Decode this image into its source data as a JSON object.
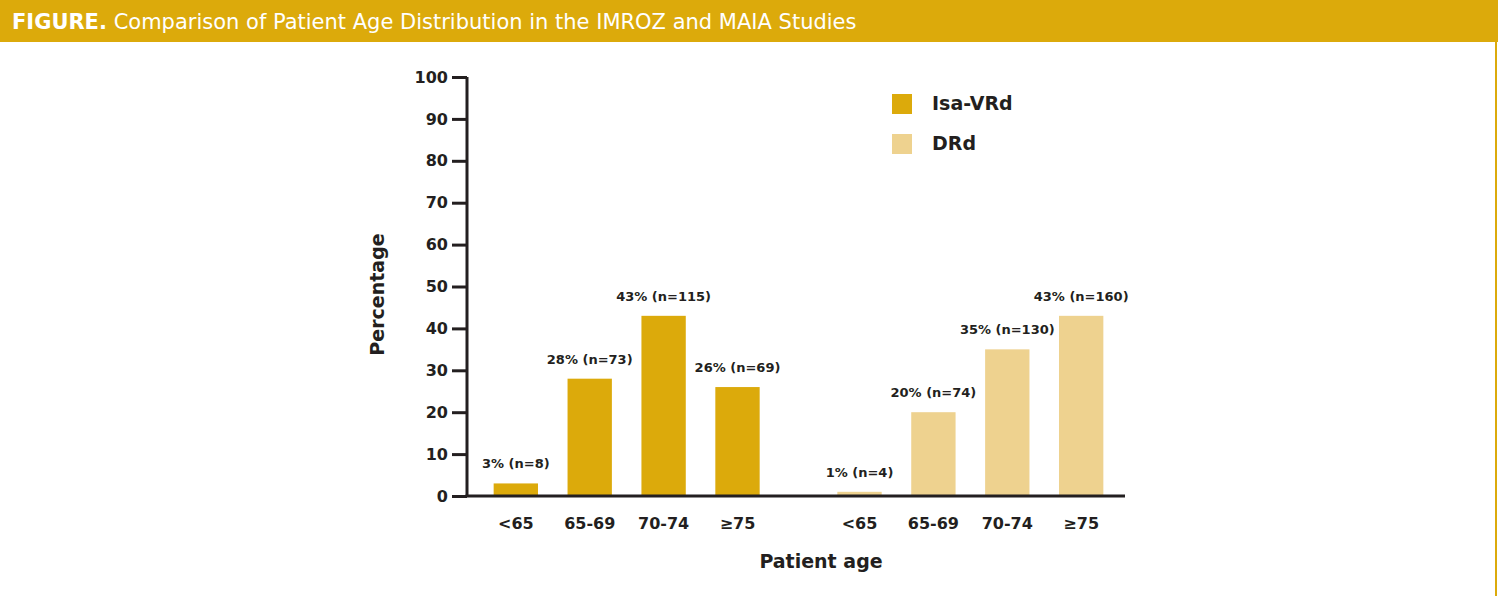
{
  "chart_data": {
    "type": "bar",
    "title": "FIGURE. Comparison of Patient Age Distribution in the IMROZ and MAIA Studies",
    "x_label": "Patient age",
    "y_label": "Percentage",
    "categories": [
      "<65",
      "65-69",
      "70-74",
      "≥75"
    ],
    "series": [
      {
        "name": "Isa-VRd",
        "color": "#dcaa0b",
        "values": [
          3,
          28,
          43,
          26
        ],
        "value_labels": [
          "3% (n=8)",
          "28% (n=73)",
          "43% (n=115)",
          "26% (n=69)"
        ]
      },
      {
        "name": "DRd",
        "color": "#eed28f",
        "values": [
          1,
          20,
          35,
          43
        ],
        "value_labels": [
          "1% (n=4)",
          "20% (n=74)",
          "35% (n=130)",
          "43% (n=160)"
        ]
      }
    ],
    "ylim": [
      0,
      100
    ],
    "yticks": [
      0,
      10,
      20,
      30,
      40,
      50,
      60,
      70,
      80,
      90,
      100
    ],
    "grid": false,
    "legend": "top-right",
    "data_labels": true
  }
}
